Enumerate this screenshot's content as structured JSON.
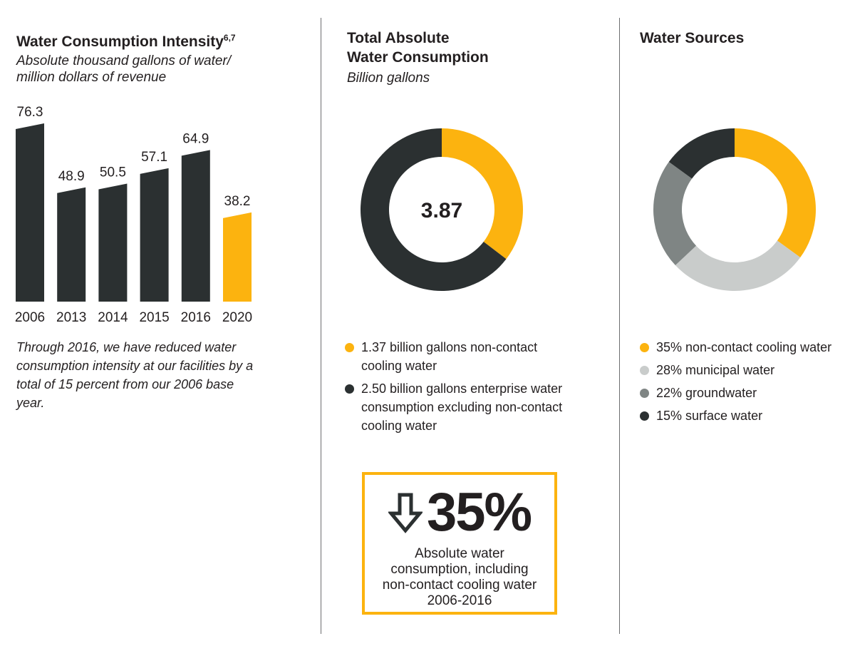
{
  "intensity": {
    "title": "Water Consumption Intensity",
    "title_sup": "6,7",
    "subtitle_line1": "Absolute thousand gallons of water/",
    "subtitle_line2": "million dollars of revenue",
    "note": "Through 2016, we have reduced water consumption intensity at our facilities by a total of 15 percent from our 2006 base year."
  },
  "total": {
    "title_line1": "Total Absolute",
    "title_line2": "Water Consumption",
    "subtitle": "Billion gallons",
    "legend": [
      {
        "text": "1.37 billion gallons non-contact cooling water"
      },
      {
        "text": "2.50 billion gallons enterprise water consumption excluding non-contact cooling water"
      }
    ]
  },
  "callout": {
    "value": "35%",
    "line1": "Absolute water",
    "line2": "consumption, including",
    "line3": "non-contact cooling water",
    "line4": "2006-2016"
  },
  "sources": {
    "title": "Water Sources",
    "legend": [
      {
        "text": "35% non-contact cooling water"
      },
      {
        "text": "28% municipal water"
      },
      {
        "text": "22% groundwater"
      },
      {
        "text": "15% surface water"
      }
    ]
  },
  "colors": {
    "dark": "#2b3031",
    "yellow": "#fcb30f",
    "light_gray": "#c9cccb",
    "mid_gray": "#7f8584",
    "divider": "#6d6e70"
  },
  "icons": {
    "callout_icon": "arrow-down-icon"
  },
  "chart_data": [
    {
      "type": "bar",
      "title": "Water Consumption Intensity",
      "ylabel": "Absolute thousand gallons of water/million dollars of revenue",
      "categories": [
        "2006",
        "2013",
        "2014",
        "2015",
        "2016",
        "2020"
      ],
      "values": [
        76.3,
        48.9,
        50.5,
        57.1,
        64.9,
        38.2
      ],
      "labels": [
        "76.3",
        "48.9",
        "50.5",
        "57.1",
        "64.9",
        "38.2"
      ],
      "highlight": [
        "2020"
      ],
      "ylim": [
        0,
        80
      ],
      "grid": false
    },
    {
      "type": "pie",
      "donut": true,
      "title": "Total Absolute Water Consumption",
      "center_label": "3.87",
      "categories": [
        "non-contact cooling water",
        "enterprise water consumption excluding non-contact cooling water"
      ],
      "values": [
        1.37,
        2.5
      ],
      "colors": [
        "#fcb30f",
        "#2b3031"
      ]
    },
    {
      "type": "pie",
      "donut": true,
      "title": "Water Sources",
      "categories": [
        "non-contact cooling water",
        "municipal water",
        "groundwater",
        "surface water"
      ],
      "values": [
        35,
        28,
        22,
        15
      ],
      "colors": [
        "#fcb30f",
        "#c9cccb",
        "#7f8584",
        "#2b3031"
      ]
    }
  ]
}
